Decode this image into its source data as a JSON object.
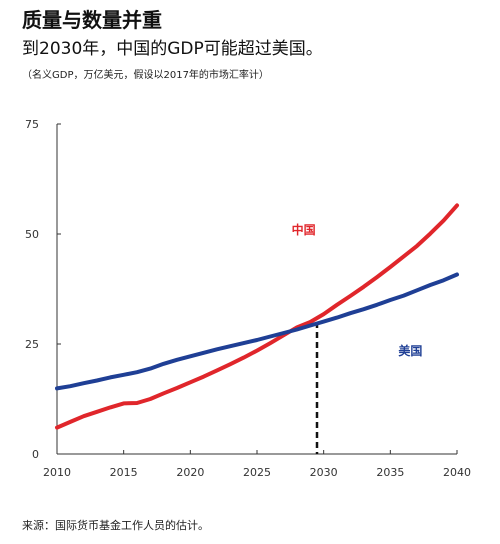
{
  "header": {
    "title": "质量与数量并重",
    "subtitle": "到2030年，中国的GDP可能超过美国。",
    "note": "（名义GDP，万亿美元，假设以2017年的市场汇率计）"
  },
  "footer": {
    "source": "来源：国际货币基金工作人员的估计。"
  },
  "colors": {
    "china": "#e0262b",
    "usa": "#1f3f95",
    "axis": "#333333",
    "crossover": "#111111"
  },
  "chart_data": {
    "type": "line",
    "title": "质量与数量并重",
    "xlabel": "",
    "ylabel": "",
    "xlim": [
      2010,
      2040
    ],
    "ylim": [
      0,
      75
    ],
    "x_ticks": [
      2010,
      2015,
      2020,
      2025,
      2030,
      2035,
      2040
    ],
    "y_ticks": [
      0,
      25,
      50,
      75
    ],
    "grid": false,
    "crossover": {
      "x": 2029.5,
      "y": 30
    },
    "series": [
      {
        "name": "中国",
        "color": "#e0262b",
        "label_at": [
          2028.5,
          50
        ],
        "x": [
          2010,
          2011,
          2012,
          2013,
          2014,
          2015,
          2016,
          2017,
          2018,
          2019,
          2020,
          2021,
          2022,
          2023,
          2024,
          2025,
          2026,
          2027,
          2028,
          2029,
          2030,
          2031,
          2032,
          2033,
          2034,
          2035,
          2036,
          2037,
          2038,
          2039,
          2040
        ],
        "values": [
          6,
          7.3,
          8.6,
          9.6,
          10.6,
          11.5,
          11.6,
          12.5,
          13.8,
          15.0,
          16.3,
          17.6,
          19.0,
          20.4,
          21.9,
          23.5,
          25.2,
          27.0,
          28.8,
          30.0,
          31.8,
          33.9,
          35.9,
          38.0,
          40.2,
          42.5,
          44.9,
          47.3,
          50.1,
          53.1,
          56.5
        ]
      },
      {
        "name": "美国",
        "color": "#1f3f95",
        "label_at": [
          2036.5,
          22.5
        ],
        "x": [
          2010,
          2011,
          2012,
          2013,
          2014,
          2015,
          2016,
          2017,
          2018,
          2019,
          2020,
          2021,
          2022,
          2023,
          2024,
          2025,
          2026,
          2027,
          2028,
          2029,
          2030,
          2031,
          2032,
          2033,
          2034,
          2035,
          2036,
          2037,
          2038,
          2039,
          2040
        ],
        "values": [
          14.9,
          15.4,
          16.1,
          16.7,
          17.4,
          18.0,
          18.6,
          19.4,
          20.5,
          21.4,
          22.2,
          23.0,
          23.8,
          24.5,
          25.2,
          25.9,
          26.7,
          27.5,
          28.3,
          29.2,
          30.1,
          31.0,
          32.0,
          32.9,
          33.9,
          35.0,
          36.0,
          37.2,
          38.4,
          39.5,
          40.8
        ]
      }
    ]
  }
}
